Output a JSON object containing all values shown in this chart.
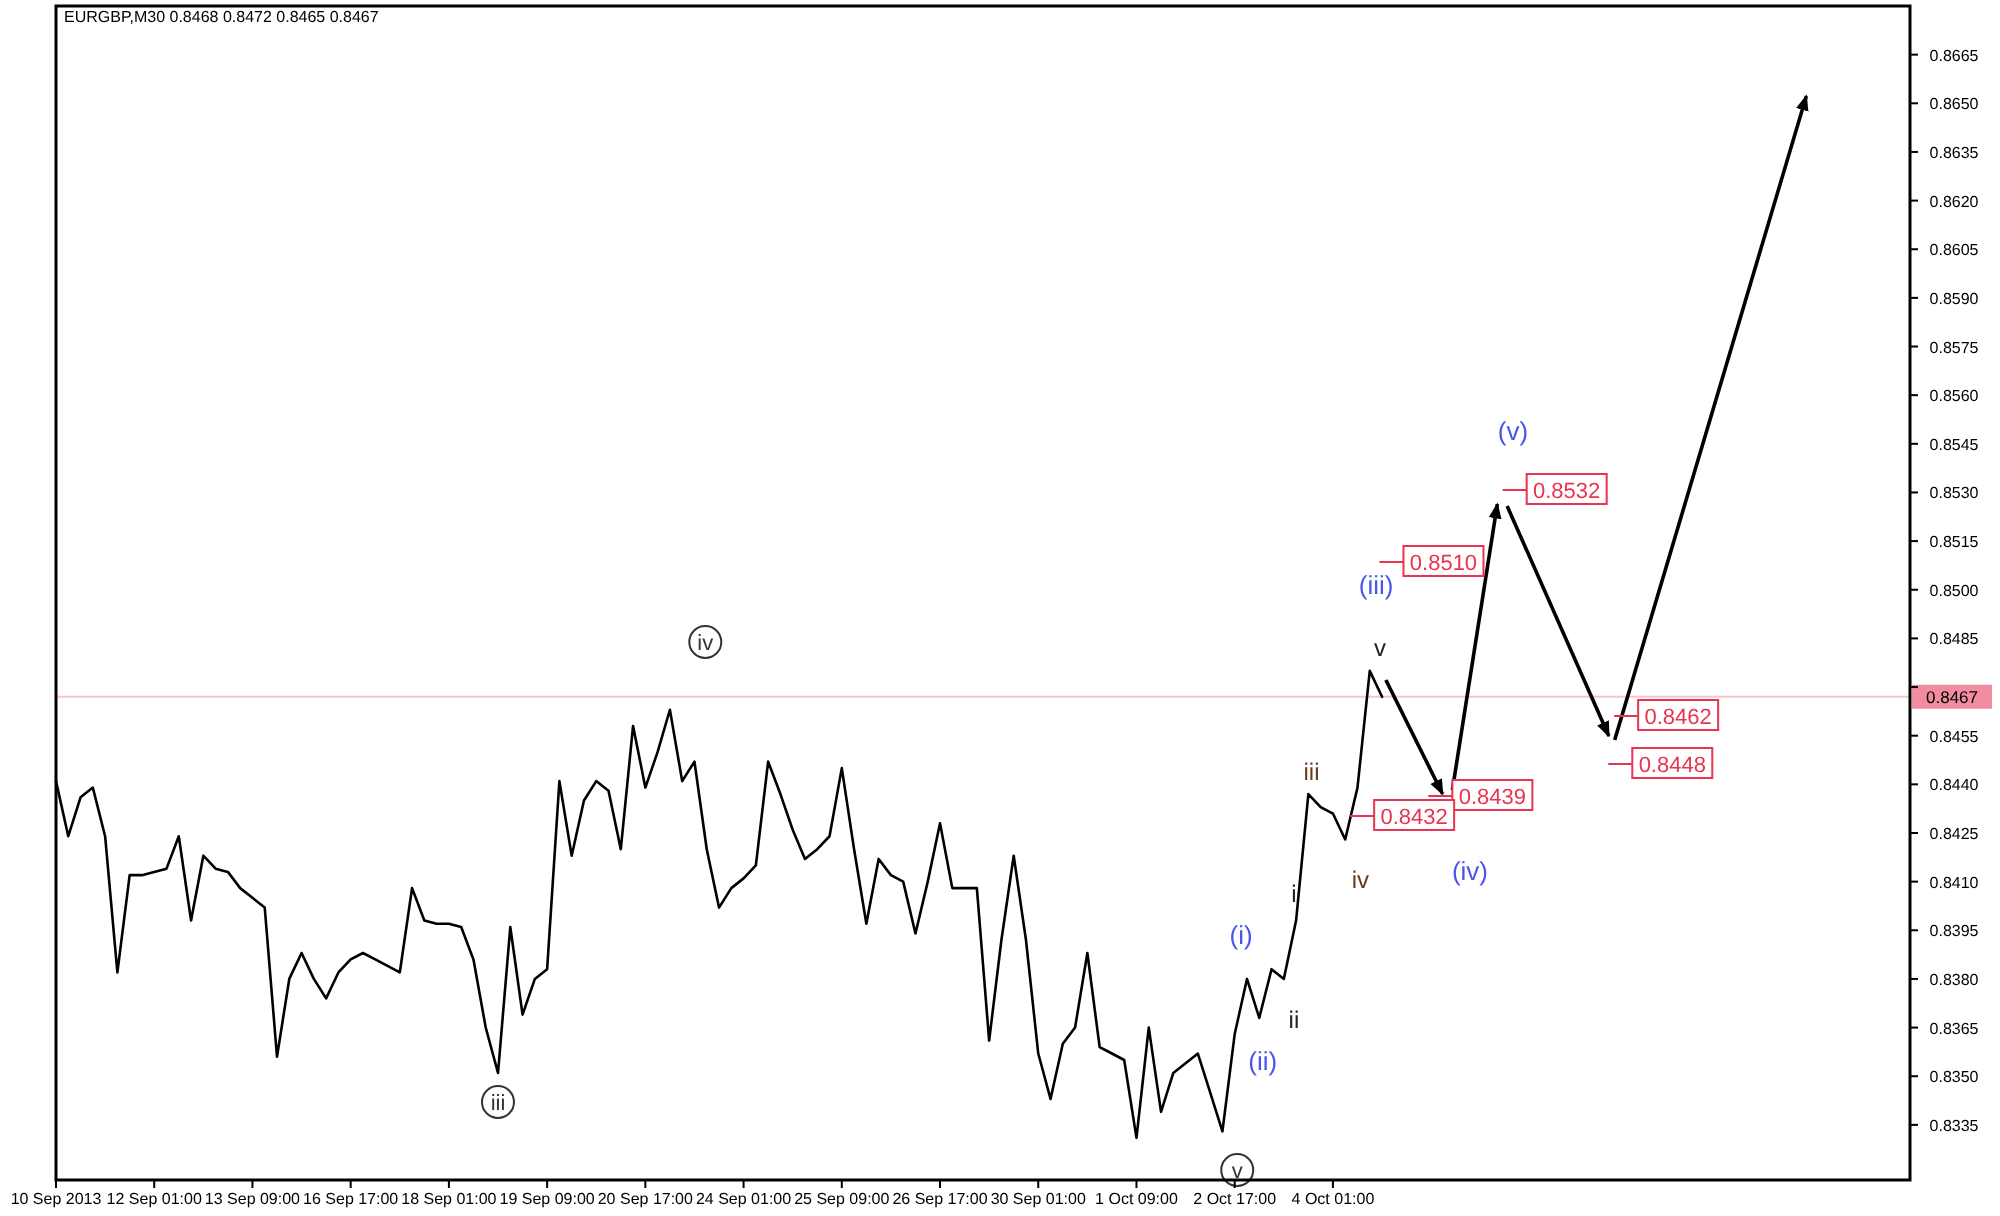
{
  "chart_data": {
    "type": "line",
    "title": "EURGBP,M30  0.8468 0.8472 0.8465 0.8467",
    "ylim": [
      0.8318,
      0.868
    ],
    "categories": [
      "10 Sep 2013",
      null,
      null,
      null,
      null,
      null,
      null,
      null,
      "12 Sep 01:00",
      null,
      null,
      null,
      null,
      null,
      null,
      null,
      "13 Sep 09:00",
      null,
      null,
      null,
      null,
      null,
      null,
      null,
      "16 Sep 17:00",
      null,
      null,
      null,
      null,
      null,
      null,
      null,
      "18 Sep 01:00",
      null,
      null,
      null,
      null,
      null,
      null,
      null,
      "19 Sep 09:00",
      null,
      null,
      null,
      null,
      null,
      null,
      null,
      "20 Sep 17:00",
      null,
      null,
      null,
      null,
      null,
      null,
      null,
      "24 Sep 01:00",
      null,
      null,
      null,
      null,
      null,
      null,
      null,
      "25 Sep 09:00",
      null,
      null,
      null,
      null,
      null,
      null,
      null,
      "26 Sep 17:00",
      null,
      null,
      null,
      null,
      null,
      null,
      null,
      "30 Sep 01:00",
      null,
      null,
      null,
      null,
      null,
      null,
      null,
      "1 Oct 09:00",
      null,
      null,
      null,
      null,
      null,
      null,
      null,
      "2 Oct 17:00",
      null,
      null,
      null,
      null,
      null,
      null,
      null,
      "4 Oct 01:00",
      null,
      null,
      null,
      null,
      null,
      null,
      null,
      null,
      null,
      null,
      null,
      null,
      null,
      null,
      null,
      null,
      null,
      null,
      null,
      null,
      null,
      null,
      null,
      null,
      null,
      null,
      null,
      null,
      null,
      null,
      null,
      null,
      null,
      null,
      null,
      null,
      null,
      null,
      null,
      null,
      null,
      null,
      null,
      null,
      null,
      null,
      null
    ],
    "yticks": [
      {
        "value": 0.8335,
        "label": "0.8335"
      },
      {
        "value": 0.835,
        "label": "0.8350"
      },
      {
        "value": 0.8365,
        "label": "0.8365"
      },
      {
        "value": 0.838,
        "label": "0.8380"
      },
      {
        "value": 0.8395,
        "label": "0.8395"
      },
      {
        "value": 0.841,
        "label": "0.8410"
      },
      {
        "value": 0.8425,
        "label": "0.8425"
      },
      {
        "value": 0.844,
        "label": "0.8440"
      },
      {
        "value": 0.8455,
        "label": "0.8455"
      },
      {
        "value": 0.847,
        "label": null
      },
      {
        "value": 0.8485,
        "label": "0.8485"
      },
      {
        "value": 0.85,
        "label": "0.8500"
      },
      {
        "value": 0.8515,
        "label": "0.8515"
      },
      {
        "value": 0.853,
        "label": "0.8530"
      },
      {
        "value": 0.8545,
        "label": "0.8545"
      },
      {
        "value": 0.856,
        "label": "0.8560"
      },
      {
        "value": 0.8575,
        "label": "0.8575"
      },
      {
        "value": 0.859,
        "label": "0.8590"
      },
      {
        "value": 0.8605,
        "label": "0.8605"
      },
      {
        "value": 0.862,
        "label": "0.8620"
      },
      {
        "value": 0.8635,
        "label": "0.8635"
      },
      {
        "value": 0.865,
        "label": "0.8650"
      },
      {
        "value": 0.8665,
        "label": "0.8665"
      }
    ],
    "series": [
      {
        "color": "#000000",
        "values": [
          0.8441,
          0.8424,
          0.8436,
          0.8439,
          0.8424,
          0.8382,
          0.8412,
          0.8412,
          0.8413,
          0.8414,
          0.8424,
          0.8398,
          0.8418,
          0.8414,
          0.8413,
          0.8408,
          0.8405,
          0.8402,
          0.8356,
          0.838,
          0.8388,
          0.838,
          0.8374,
          0.8382,
          0.8386,
          0.8388,
          0.8386,
          0.8384,
          0.8382,
          0.8408,
          0.8398,
          0.8397,
          0.8397,
          0.8396,
          0.8386,
          0.8365,
          0.8351,
          0.8396,
          0.8369,
          0.838,
          0.8383,
          0.8441,
          0.8418,
          0.8435,
          0.8441,
          0.8438,
          0.842,
          0.8458,
          0.8439,
          0.845,
          0.8463,
          0.8441,
          0.8447,
          0.842,
          0.8402,
          0.8408,
          0.8411,
          0.8415,
          0.8447,
          0.8437,
          0.8426,
          0.8417,
          0.842,
          0.8424,
          0.8445,
          0.842,
          0.8397,
          0.8417,
          0.8412,
          0.841,
          0.8394,
          0.841,
          0.8428,
          0.8408,
          0.8408,
          0.8408,
          0.8361,
          0.8392,
          0.8418,
          0.8392,
          0.8357,
          0.8343,
          0.836,
          0.8365,
          0.8388,
          0.8359,
          0.8357,
          0.8355,
          0.8331,
          0.8365,
          0.8339,
          0.8351,
          0.8354,
          0.8357,
          0.8345,
          0.8333,
          0.8363,
          0.838,
          0.8368,
          0.8383,
          0.838,
          0.8398,
          0.8437,
          0.8433,
          0.8431,
          0.8423,
          0.8439,
          0.8475,
          0.8467,
          null,
          null,
          null,
          null,
          null,
          null,
          null,
          null,
          null,
          null,
          null,
          null,
          null,
          null,
          null,
          null,
          null,
          null,
          null,
          null,
          null,
          null,
          null,
          null,
          null,
          null,
          null,
          null,
          null,
          null,
          null,
          null,
          null,
          null,
          null,
          null,
          null,
          null,
          null,
          null,
          null,
          null,
          null
        ]
      }
    ],
    "ref_lines": [
      {
        "axis": "y",
        "value": 0.8467,
        "label": "0.8467",
        "color": "#f28ca0"
      }
    ],
    "annotations": [
      "iv",
      "iii",
      "v",
      "(i)",
      "(ii)",
      "(iii)",
      "(iv)",
      "(v)",
      "i",
      "ii",
      "iii",
      "iv",
      "v",
      "0.8532",
      "0.8510",
      "0.8439",
      "0.8432",
      "0.8462",
      "0.8448"
    ]
  }
}
